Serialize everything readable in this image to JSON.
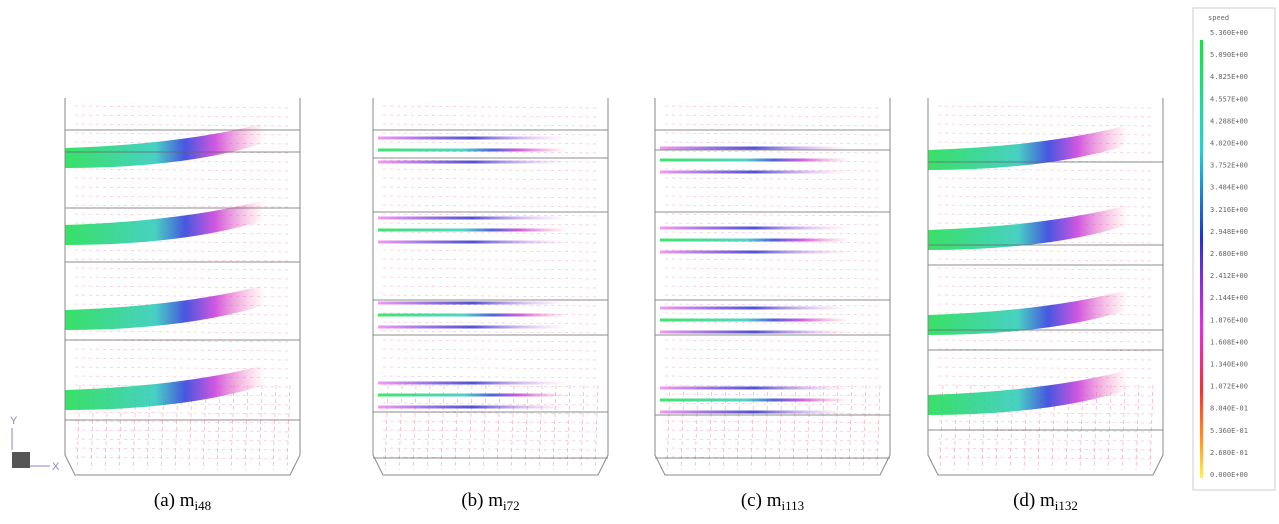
{
  "panels": [
    {
      "prefix": "(a) m",
      "sub": "i48"
    },
    {
      "prefix": "(b) m",
      "sub": "i72"
    },
    {
      "prefix": "(c) m",
      "sub": "i113"
    },
    {
      "prefix": "(d) m",
      "sub": "i132"
    }
  ],
  "legend": {
    "title": "speed",
    "labels": [
      "5.360E+00",
      "5.090E+00",
      "4.825E+00",
      "4.557E+00",
      "4.288E+00",
      "4.020E+00",
      "3.752E+00",
      "3.484E+00",
      "3.216E+00",
      "2.948E+00",
      "2.680E+00",
      "2.412E+00",
      "2.144E+00",
      "1.876E+00",
      "1.608E+00",
      "1.340E+00",
      "1.072E+00",
      "8.040E-01",
      "5.360E-01",
      "2.680E-01",
      "0.000E+00"
    ]
  },
  "axes": {
    "y": "Y",
    "x": "X"
  }
}
